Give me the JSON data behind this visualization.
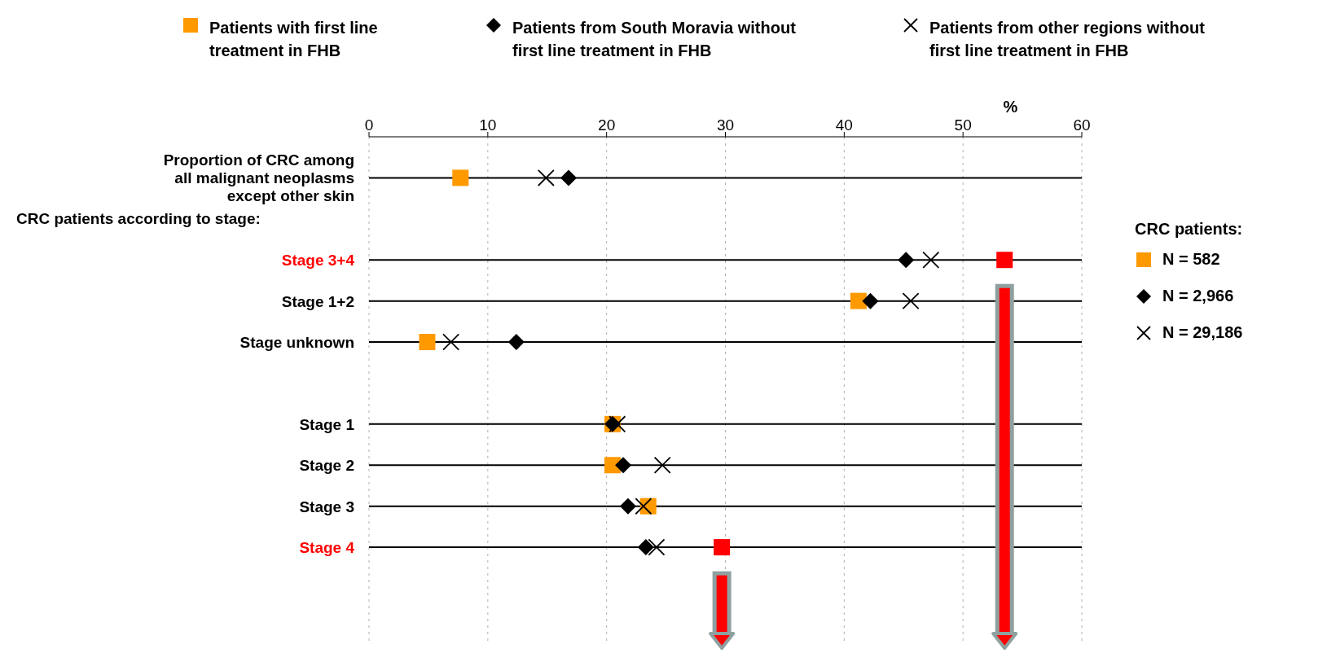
{
  "chart_data": {
    "type": "scatter",
    "orientation": "horizontal",
    "categories": [
      "Proportion of CRC among all malignant neoplasms except other skin",
      null,
      "Stage 3+4",
      "Stage 1+2",
      "Stage unknown",
      null,
      "Stage 1",
      "Stage 2",
      "Stage 3",
      "Stage 4"
    ],
    "series": [
      {
        "name": "Patients with first line treatment in FHB",
        "color": "#ff9900",
        "marker": "square",
        "colors": [
          "#ff9900",
          "#ff9900",
          "#ff0000",
          "#ff9900",
          "#ff9900",
          "#ff9900",
          "#ff9900",
          "#ff9900",
          "#ff9900",
          "#ff0000"
        ],
        "values": [
          7.7,
          null,
          53.5,
          41.2,
          4.9,
          null,
          20.5,
          20.5,
          23.5,
          29.7
        ]
      },
      {
        "name": "Patients from South Moravia without first line treatment in FHB",
        "color": "#000000",
        "marker": "diamond",
        "values": [
          16.8,
          null,
          45.2,
          42.2,
          12.4,
          null,
          20.5,
          21.4,
          21.8,
          23.3
        ]
      },
      {
        "name": "Patients from other regions without first line treatment in FHB",
        "color": "#000000",
        "marker": "cross",
        "values": [
          14.9,
          null,
          47.3,
          45.6,
          6.9,
          null,
          20.9,
          24.7,
          23.1,
          24.2
        ]
      }
    ],
    "xlabel": "%",
    "xlim": [
      0,
      60
    ],
    "xticks": [
      0,
      10,
      20,
      30,
      40,
      50,
      60
    ],
    "grid": "x",
    "legend": "top",
    "annotations": [
      "CRC patients according to stage:",
      "CRC patients:",
      "N = 582",
      "N = 2,966",
      "N = 29,186"
    ]
  }
}
